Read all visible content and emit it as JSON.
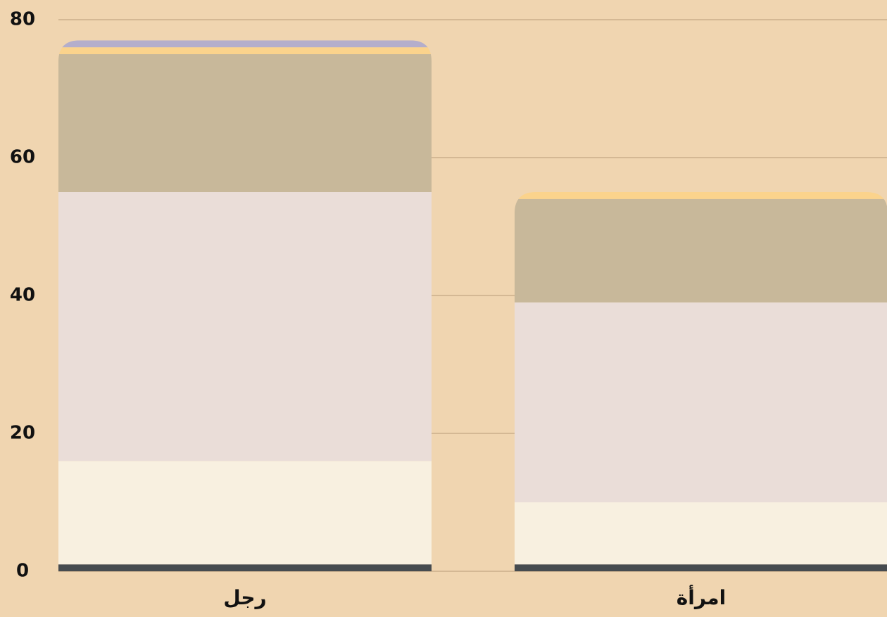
{
  "chart_data": {
    "type": "stacked_bar",
    "categories": [
      "رجل",
      "امرأة"
    ],
    "series": [
      {
        "color": "#464b4f",
        "values": [
          1,
          1
        ]
      },
      {
        "color": "#f8f0e0",
        "values": [
          15,
          9
        ]
      },
      {
        "color": "#eaddd8",
        "values": [
          39,
          29
        ]
      },
      {
        "color": "#c8b89a",
        "values": [
          20,
          15
        ]
      },
      {
        "color": "#fbd38c",
        "values": [
          1,
          1
        ]
      },
      {
        "color": "#b4aecb",
        "values": [
          1,
          0
        ]
      }
    ],
    "ylim": [
      0,
      80
    ],
    "yticks": [
      0,
      20,
      40,
      60,
      80
    ],
    "grid": true
  }
}
